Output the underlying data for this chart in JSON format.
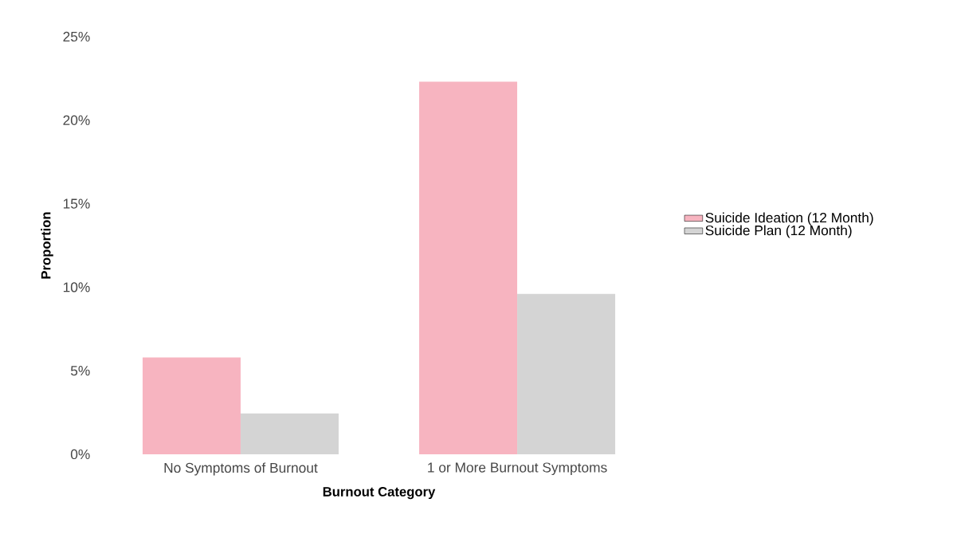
{
  "chart_data": {
    "type": "bar",
    "xlabel": "Burnout Category",
    "ylabel": "Proportion",
    "categories": [
      "No Symptoms of Burnout",
      "1 or More Burnout Symptoms"
    ],
    "series": [
      {
        "name": "Suicide Ideation (12 Month)",
        "color": "#f7b4c0",
        "values": [
          5.8,
          22.3
        ]
      },
      {
        "name": "Suicide Plan (12 Month)",
        "color": "#d4d4d4",
        "values": [
          2.45,
          9.6
        ]
      }
    ],
    "ylim": [
      0,
      25
    ],
    "yticks": [
      {
        "value": 0,
        "label": "0%"
      },
      {
        "value": 5,
        "label": "5%"
      },
      {
        "value": 10,
        "label": "10%"
      },
      {
        "value": 15,
        "label": "15%"
      },
      {
        "value": 20,
        "label": "20%"
      },
      {
        "value": 25,
        "label": "25%"
      }
    ],
    "grid": false,
    "legend": "right"
  }
}
